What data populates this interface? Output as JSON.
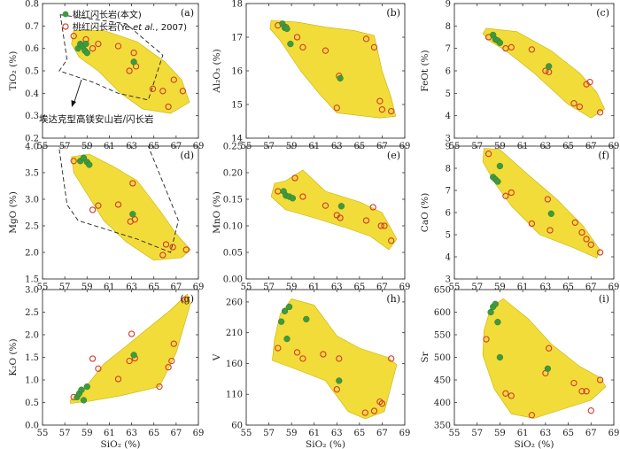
{
  "colors": {
    "field": "#f2dc3a",
    "field_stroke": "#c9b300",
    "green": "#3e9a3e",
    "open_stroke": "#d23a2a",
    "axis": "#333333"
  },
  "legend": {
    "this_study": "桃红闪长岩(本文)",
    "ye_prefix": "桃红闪长岩(Ye ",
    "ye_etal": "et al.",
    "ye_suffix": ", 2007)"
  },
  "annotation": "埃达克型高镁安山岩/闪长岩",
  "chart_data": [
    {
      "id": "a",
      "type": "scatter",
      "letter": "(a)",
      "ylabel": "TiO₂ (%)",
      "xlabel": "",
      "xlim": [
        55,
        69
      ],
      "ylim": [
        0.2,
        0.8
      ],
      "xticks": [
        55,
        57,
        59,
        61,
        63,
        65,
        67,
        69
      ],
      "yticks": [
        0.2,
        0.3,
        0.4,
        0.5,
        0.6,
        0.7,
        0.8
      ],
      "field": [
        [
          57.8,
          0.68
        ],
        [
          60.5,
          0.68
        ],
        [
          63.5,
          0.63
        ],
        [
          66,
          0.54
        ],
        [
          67.5,
          0.46
        ],
        [
          68.2,
          0.36
        ],
        [
          66.5,
          0.31
        ],
        [
          64,
          0.33
        ],
        [
          62,
          0.4
        ],
        [
          60,
          0.5
        ],
        [
          58.3,
          0.56
        ],
        [
          57.6,
          0.62
        ]
      ],
      "dashed": [
        [
          56.6,
          0.75
        ],
        [
          62.5,
          0.71
        ],
        [
          65.8,
          0.57
        ],
        [
          64.5,
          0.37
        ],
        [
          61.8,
          0.4
        ],
        [
          59.5,
          0.45
        ],
        [
          56.5,
          0.5
        ],
        [
          57.2,
          0.55
        ]
      ],
      "green": [
        [
          58.2,
          0.6
        ],
        [
          58.4,
          0.62
        ],
        [
          58.6,
          0.61
        ],
        [
          58.8,
          0.59
        ],
        [
          58.9,
          0.62
        ],
        [
          59.0,
          0.58
        ],
        [
          63.2,
          0.54
        ]
      ],
      "open": [
        [
          57.8,
          0.655
        ],
        [
          58.9,
          0.64
        ],
        [
          59.5,
          0.6
        ],
        [
          60.0,
          0.62
        ],
        [
          61.8,
          0.61
        ],
        [
          62.8,
          0.5
        ],
        [
          63.2,
          0.58
        ],
        [
          63.4,
          0.52
        ],
        [
          64.9,
          0.42
        ],
        [
          65.8,
          0.41
        ],
        [
          66.3,
          0.34
        ],
        [
          66.8,
          0.46
        ],
        [
          67.6,
          0.41
        ]
      ]
    },
    {
      "id": "b",
      "type": "scatter",
      "letter": "(b)",
      "ylabel": "Al₂O₃ (%)",
      "xlabel": "",
      "xlim": [
        55,
        69
      ],
      "ylim": [
        14,
        18
      ],
      "xticks": [
        55,
        57,
        59,
        61,
        63,
        65,
        67,
        69
      ],
      "yticks": [
        14,
        15,
        16,
        17,
        18
      ],
      "field": [
        [
          57.2,
          17.5
        ],
        [
          59.5,
          17.45
        ],
        [
          62,
          17.3
        ],
        [
          64.5,
          17.2
        ],
        [
          66.3,
          17.05
        ],
        [
          67,
          16.0
        ],
        [
          67.8,
          15.2
        ],
        [
          68.2,
          14.65
        ],
        [
          66.8,
          14.6
        ],
        [
          63,
          14.75
        ],
        [
          61.5,
          15.3
        ],
        [
          59.8,
          16.0
        ],
        [
          58,
          16.9
        ],
        [
          57.1,
          17.25
        ]
      ],
      "dashed": [],
      "green": [
        [
          58.2,
          17.4
        ],
        [
          58.4,
          17.28
        ],
        [
          58.6,
          17.25
        ],
        [
          58.9,
          16.8
        ],
        [
          63.3,
          15.78
        ]
      ],
      "open": [
        [
          57.8,
          17.35
        ],
        [
          58.5,
          17.3
        ],
        [
          59.5,
          17.0
        ],
        [
          60.0,
          16.7
        ],
        [
          62.0,
          16.6
        ],
        [
          63.0,
          14.9
        ],
        [
          63.2,
          15.85
        ],
        [
          65.6,
          16.95
        ],
        [
          66.3,
          16.7
        ],
        [
          66.8,
          15.1
        ],
        [
          67.0,
          14.85
        ],
        [
          67.8,
          14.8
        ]
      ]
    },
    {
      "id": "c",
      "type": "scatter",
      "letter": "(c)",
      "ylabel": "FeOt (%)",
      "xlabel": "",
      "xlim": [
        55,
        69
      ],
      "ylim": [
        3,
        9
      ],
      "xticks": [
        55,
        57,
        59,
        61,
        63,
        65,
        67,
        69
      ],
      "yticks": [
        3,
        4,
        5,
        6,
        7,
        8,
        9
      ],
      "field": [
        [
          57.8,
          7.9
        ],
        [
          60.5,
          7.75
        ],
        [
          63.5,
          6.9
        ],
        [
          66,
          5.9
        ],
        [
          67.5,
          5.05
        ],
        [
          68.2,
          4.3
        ],
        [
          67,
          3.9
        ],
        [
          65,
          4.5
        ],
        [
          62,
          5.9
        ],
        [
          59.5,
          6.9
        ],
        [
          58.2,
          7.3
        ],
        [
          57.5,
          7.65
        ]
      ],
      "dashed": [],
      "green": [
        [
          58.4,
          7.6
        ],
        [
          58.6,
          7.4
        ],
        [
          58.8,
          7.35
        ],
        [
          59.0,
          7.25
        ],
        [
          63.3,
          6.2
        ]
      ],
      "open": [
        [
          58.0,
          7.5
        ],
        [
          59.5,
          7.0
        ],
        [
          60.0,
          7.05
        ],
        [
          61.8,
          6.95
        ],
        [
          63.0,
          6.0
        ],
        [
          63.3,
          5.95
        ],
        [
          65.5,
          4.55
        ],
        [
          66.0,
          4.4
        ],
        [
          66.6,
          5.4
        ],
        [
          66.9,
          5.5
        ],
        [
          67.8,
          4.15
        ]
      ]
    },
    {
      "id": "d",
      "type": "scatter",
      "letter": "(d)",
      "ylabel": "MgO (%)",
      "xlabel": "",
      "xlim": [
        55,
        69
      ],
      "ylim": [
        1.5,
        4.0
      ],
      "xticks": [
        55,
        57,
        59,
        61,
        63,
        65,
        67,
        69
      ],
      "yticks": [
        1.5,
        2.0,
        2.5,
        3.0,
        3.5,
        4.0
      ],
      "field": [
        [
          57.6,
          3.8
        ],
        [
          59.2,
          3.85
        ],
        [
          61.5,
          3.6
        ],
        [
          63.5,
          3.35
        ],
        [
          65.5,
          2.8
        ],
        [
          67,
          2.35
        ],
        [
          68.3,
          2.05
        ],
        [
          67.5,
          1.9
        ],
        [
          65,
          1.85
        ],
        [
          62.5,
          2.2
        ],
        [
          60.5,
          2.6
        ],
        [
          59,
          3.1
        ],
        [
          57.8,
          3.5
        ]
      ],
      "dashed": [
        [
          56.4,
          4.1
        ],
        [
          64.3,
          4.1
        ],
        [
          67.2,
          2.6
        ],
        [
          66.5,
          2.0
        ],
        [
          63.5,
          2.25
        ],
        [
          58.2,
          2.6
        ],
        [
          57.2,
          2.9
        ]
      ],
      "green": [
        [
          58.4,
          3.72
        ],
        [
          58.7,
          3.78
        ],
        [
          59.0,
          3.7
        ],
        [
          59.2,
          3.65
        ],
        [
          63.1,
          2.72
        ]
      ],
      "open": [
        [
          57.8,
          3.72
        ],
        [
          59.5,
          2.8
        ],
        [
          60.0,
          2.88
        ],
        [
          61.8,
          2.9
        ],
        [
          62.9,
          2.58
        ],
        [
          63.1,
          3.3
        ],
        [
          63.3,
          2.62
        ],
        [
          65.8,
          1.95
        ],
        [
          66.1,
          2.15
        ],
        [
          66.7,
          2.1
        ],
        [
          67.9,
          2.05
        ]
      ]
    },
    {
      "id": "e",
      "type": "scatter",
      "letter": "(e)",
      "ylabel": "MnO (%)",
      "xlabel": "",
      "xlim": [
        55,
        69
      ],
      "ylim": [
        0,
        0.25
      ],
      "xticks": [
        55,
        57,
        59,
        61,
        63,
        65,
        67,
        69
      ],
      "yticks": [
        0,
        0.05,
        0.1,
        0.15,
        0.2,
        0.25
      ],
      "field": [
        [
          57.5,
          0.18
        ],
        [
          58.5,
          0.185
        ],
        [
          60,
          0.205
        ],
        [
          62,
          0.165
        ],
        [
          65,
          0.145
        ],
        [
          67,
          0.125
        ],
        [
          68.3,
          0.075
        ],
        [
          67.6,
          0.055
        ],
        [
          66,
          0.08
        ],
        [
          64,
          0.095
        ],
        [
          61,
          0.115
        ],
        [
          58.5,
          0.13
        ],
        [
          57.2,
          0.155
        ]
      ],
      "dashed": [],
      "green": [
        [
          58.3,
          0.165
        ],
        [
          58.5,
          0.157
        ],
        [
          58.8,
          0.155
        ],
        [
          59.1,
          0.152
        ],
        [
          63.4,
          0.137
        ]
      ],
      "open": [
        [
          57.8,
          0.165
        ],
        [
          59.3,
          0.19
        ],
        [
          60.0,
          0.155
        ],
        [
          62.0,
          0.138
        ],
        [
          63.0,
          0.12
        ],
        [
          63.3,
          0.115
        ],
        [
          65.6,
          0.11
        ],
        [
          66.2,
          0.135
        ],
        [
          66.9,
          0.1
        ],
        [
          67.2,
          0.1
        ],
        [
          67.8,
          0.072
        ]
      ]
    },
    {
      "id": "f",
      "type": "scatter",
      "letter": "(f)",
      "ylabel": "CaO (%)",
      "xlabel": "",
      "xlim": [
        55,
        69
      ],
      "ylim": [
        3,
        9
      ],
      "xticks": [
        55,
        57,
        59,
        61,
        63,
        65,
        67,
        69
      ],
      "yticks": [
        3,
        4,
        5,
        6,
        7,
        8,
        9
      ],
      "field": [
        [
          57.6,
          8.9
        ],
        [
          59,
          8.85
        ],
        [
          61.5,
          7.7
        ],
        [
          64,
          6.6
        ],
        [
          66.3,
          5.4
        ],
        [
          67.8,
          4.3
        ],
        [
          67.5,
          3.95
        ],
        [
          65.5,
          4.4
        ],
        [
          62.5,
          5.0
        ],
        [
          60,
          6.3
        ],
        [
          58.6,
          7.3
        ],
        [
          57.5,
          8.3
        ]
      ],
      "dashed": [],
      "green": [
        [
          58.4,
          7.6
        ],
        [
          58.6,
          7.5
        ],
        [
          58.8,
          7.4
        ],
        [
          59.0,
          8.1
        ],
        [
          63.5,
          5.95
        ]
      ],
      "open": [
        [
          58.0,
          8.65
        ],
        [
          59.5,
          6.75
        ],
        [
          60.0,
          6.9
        ],
        [
          61.8,
          5.5
        ],
        [
          63.2,
          6.6
        ],
        [
          63.4,
          5.2
        ],
        [
          65.6,
          5.55
        ],
        [
          66.2,
          5.1
        ],
        [
          66.6,
          4.8
        ],
        [
          67.0,
          4.55
        ],
        [
          67.8,
          4.2
        ]
      ]
    },
    {
      "id": "g",
      "type": "scatter",
      "letter": "(g)",
      "ylabel": "K₂O (%)",
      "xlabel": "SiO₂ (%)",
      "xlim": [
        55,
        69
      ],
      "ylim": [
        0,
        3.0
      ],
      "xticks": [
        55,
        57,
        59,
        61,
        63,
        65,
        67,
        69
      ],
      "yticks": [
        0,
        0.5,
        1.0,
        1.5,
        2.0,
        2.5,
        3.0
      ],
      "field": [
        [
          57.5,
          0.55
        ],
        [
          58.5,
          0.72
        ],
        [
          60.5,
          1.35
        ],
        [
          62.5,
          1.75
        ],
        [
          64.5,
          2.15
        ],
        [
          66.5,
          2.55
        ],
        [
          68,
          2.9
        ],
        [
          68.3,
          2.7
        ],
        [
          67,
          1.6
        ],
        [
          65.5,
          0.85
        ],
        [
          62,
          0.65
        ],
        [
          59,
          0.52
        ],
        [
          57.5,
          0.48
        ]
      ],
      "dashed": [],
      "green": [
        [
          58.1,
          0.62
        ],
        [
          58.3,
          0.7
        ],
        [
          58.5,
          0.78
        ],
        [
          58.7,
          0.55
        ],
        [
          59.0,
          0.85
        ],
        [
          63.2,
          1.55
        ]
      ],
      "open": [
        [
          57.8,
          0.62
        ],
        [
          59.5,
          1.47
        ],
        [
          60.0,
          1.25
        ],
        [
          61.8,
          1.02
        ],
        [
          62.8,
          1.42
        ],
        [
          63.0,
          2.02
        ],
        [
          63.3,
          1.48
        ],
        [
          65.5,
          0.85
        ],
        [
          66.3,
          1.28
        ],
        [
          66.6,
          1.42
        ],
        [
          66.8,
          1.8
        ],
        [
          67.8,
          2.78
        ]
      ]
    },
    {
      "id": "h",
      "type": "scatter",
      "letter": "(h)",
      "ylabel": "V",
      "xlabel": "SiO₂ (%)",
      "xlim": [
        55,
        69
      ],
      "ylim": [
        60,
        280
      ],
      "xticks": [
        55,
        57,
        59,
        61,
        63,
        65,
        67,
        69
      ],
      "yticks": [
        60,
        110,
        160,
        210,
        260
      ],
      "field": [
        [
          57.5,
          200
        ],
        [
          58,
          240
        ],
        [
          59,
          265
        ],
        [
          61,
          255
        ],
        [
          63,
          205
        ],
        [
          65,
          185
        ],
        [
          67.5,
          170
        ],
        [
          68.3,
          158
        ],
        [
          67.2,
          82
        ],
        [
          65.5,
          70
        ],
        [
          64,
          82
        ],
        [
          62,
          132
        ],
        [
          59.5,
          150
        ],
        [
          57.3,
          165
        ]
      ],
      "dashed": [],
      "green": [
        [
          58.1,
          228
        ],
        [
          58.4,
          245
        ],
        [
          58.6,
          200
        ],
        [
          58.8,
          252
        ],
        [
          60.3,
          232
        ],
        [
          63.2,
          132
        ]
      ],
      "open": [
        [
          57.8,
          185
        ],
        [
          59.5,
          178
        ],
        [
          60.0,
          168
        ],
        [
          61.8,
          175
        ],
        [
          63.0,
          118
        ],
        [
          63.2,
          168
        ],
        [
          65.5,
          80
        ],
        [
          66.3,
          83
        ],
        [
          66.8,
          98
        ],
        [
          67.0,
          95
        ],
        [
          67.8,
          168
        ]
      ]
    },
    {
      "id": "i",
      "type": "scatter",
      "letter": "(i)",
      "ylabel": "Sr",
      "xlabel": "SiO₂ (%)",
      "xlim": [
        55,
        69
      ],
      "ylim": [
        350,
        650
      ],
      "xticks": [
        55,
        57,
        59,
        61,
        63,
        65,
        67,
        69
      ],
      "yticks": [
        350,
        400,
        450,
        500,
        550,
        600,
        650
      ],
      "field": [
        [
          57.6,
          560
        ],
        [
          58.2,
          610
        ],
        [
          59.3,
          630
        ],
        [
          61.5,
          585
        ],
        [
          63.5,
          530
        ],
        [
          66,
          480
        ],
        [
          67.8,
          455
        ],
        [
          68.3,
          435
        ],
        [
          67,
          405
        ],
        [
          64.5,
          385
        ],
        [
          62,
          365
        ],
        [
          60,
          375
        ],
        [
          58.5,
          430
        ],
        [
          57.5,
          505
        ]
      ],
      "dashed": [],
      "green": [
        [
          58.2,
          600
        ],
        [
          58.4,
          612
        ],
        [
          58.6,
          618
        ],
        [
          58.8,
          578
        ],
        [
          59.0,
          500
        ],
        [
          63.2,
          475
        ]
      ],
      "open": [
        [
          57.8,
          540
        ],
        [
          59.5,
          420
        ],
        [
          60.0,
          415
        ],
        [
          61.8,
          372
        ],
        [
          63.0,
          465
        ],
        [
          63.3,
          520
        ],
        [
          65.5,
          443
        ],
        [
          66.2,
          425
        ],
        [
          66.6,
          425
        ],
        [
          67.0,
          382
        ],
        [
          67.8,
          450
        ]
      ]
    }
  ]
}
